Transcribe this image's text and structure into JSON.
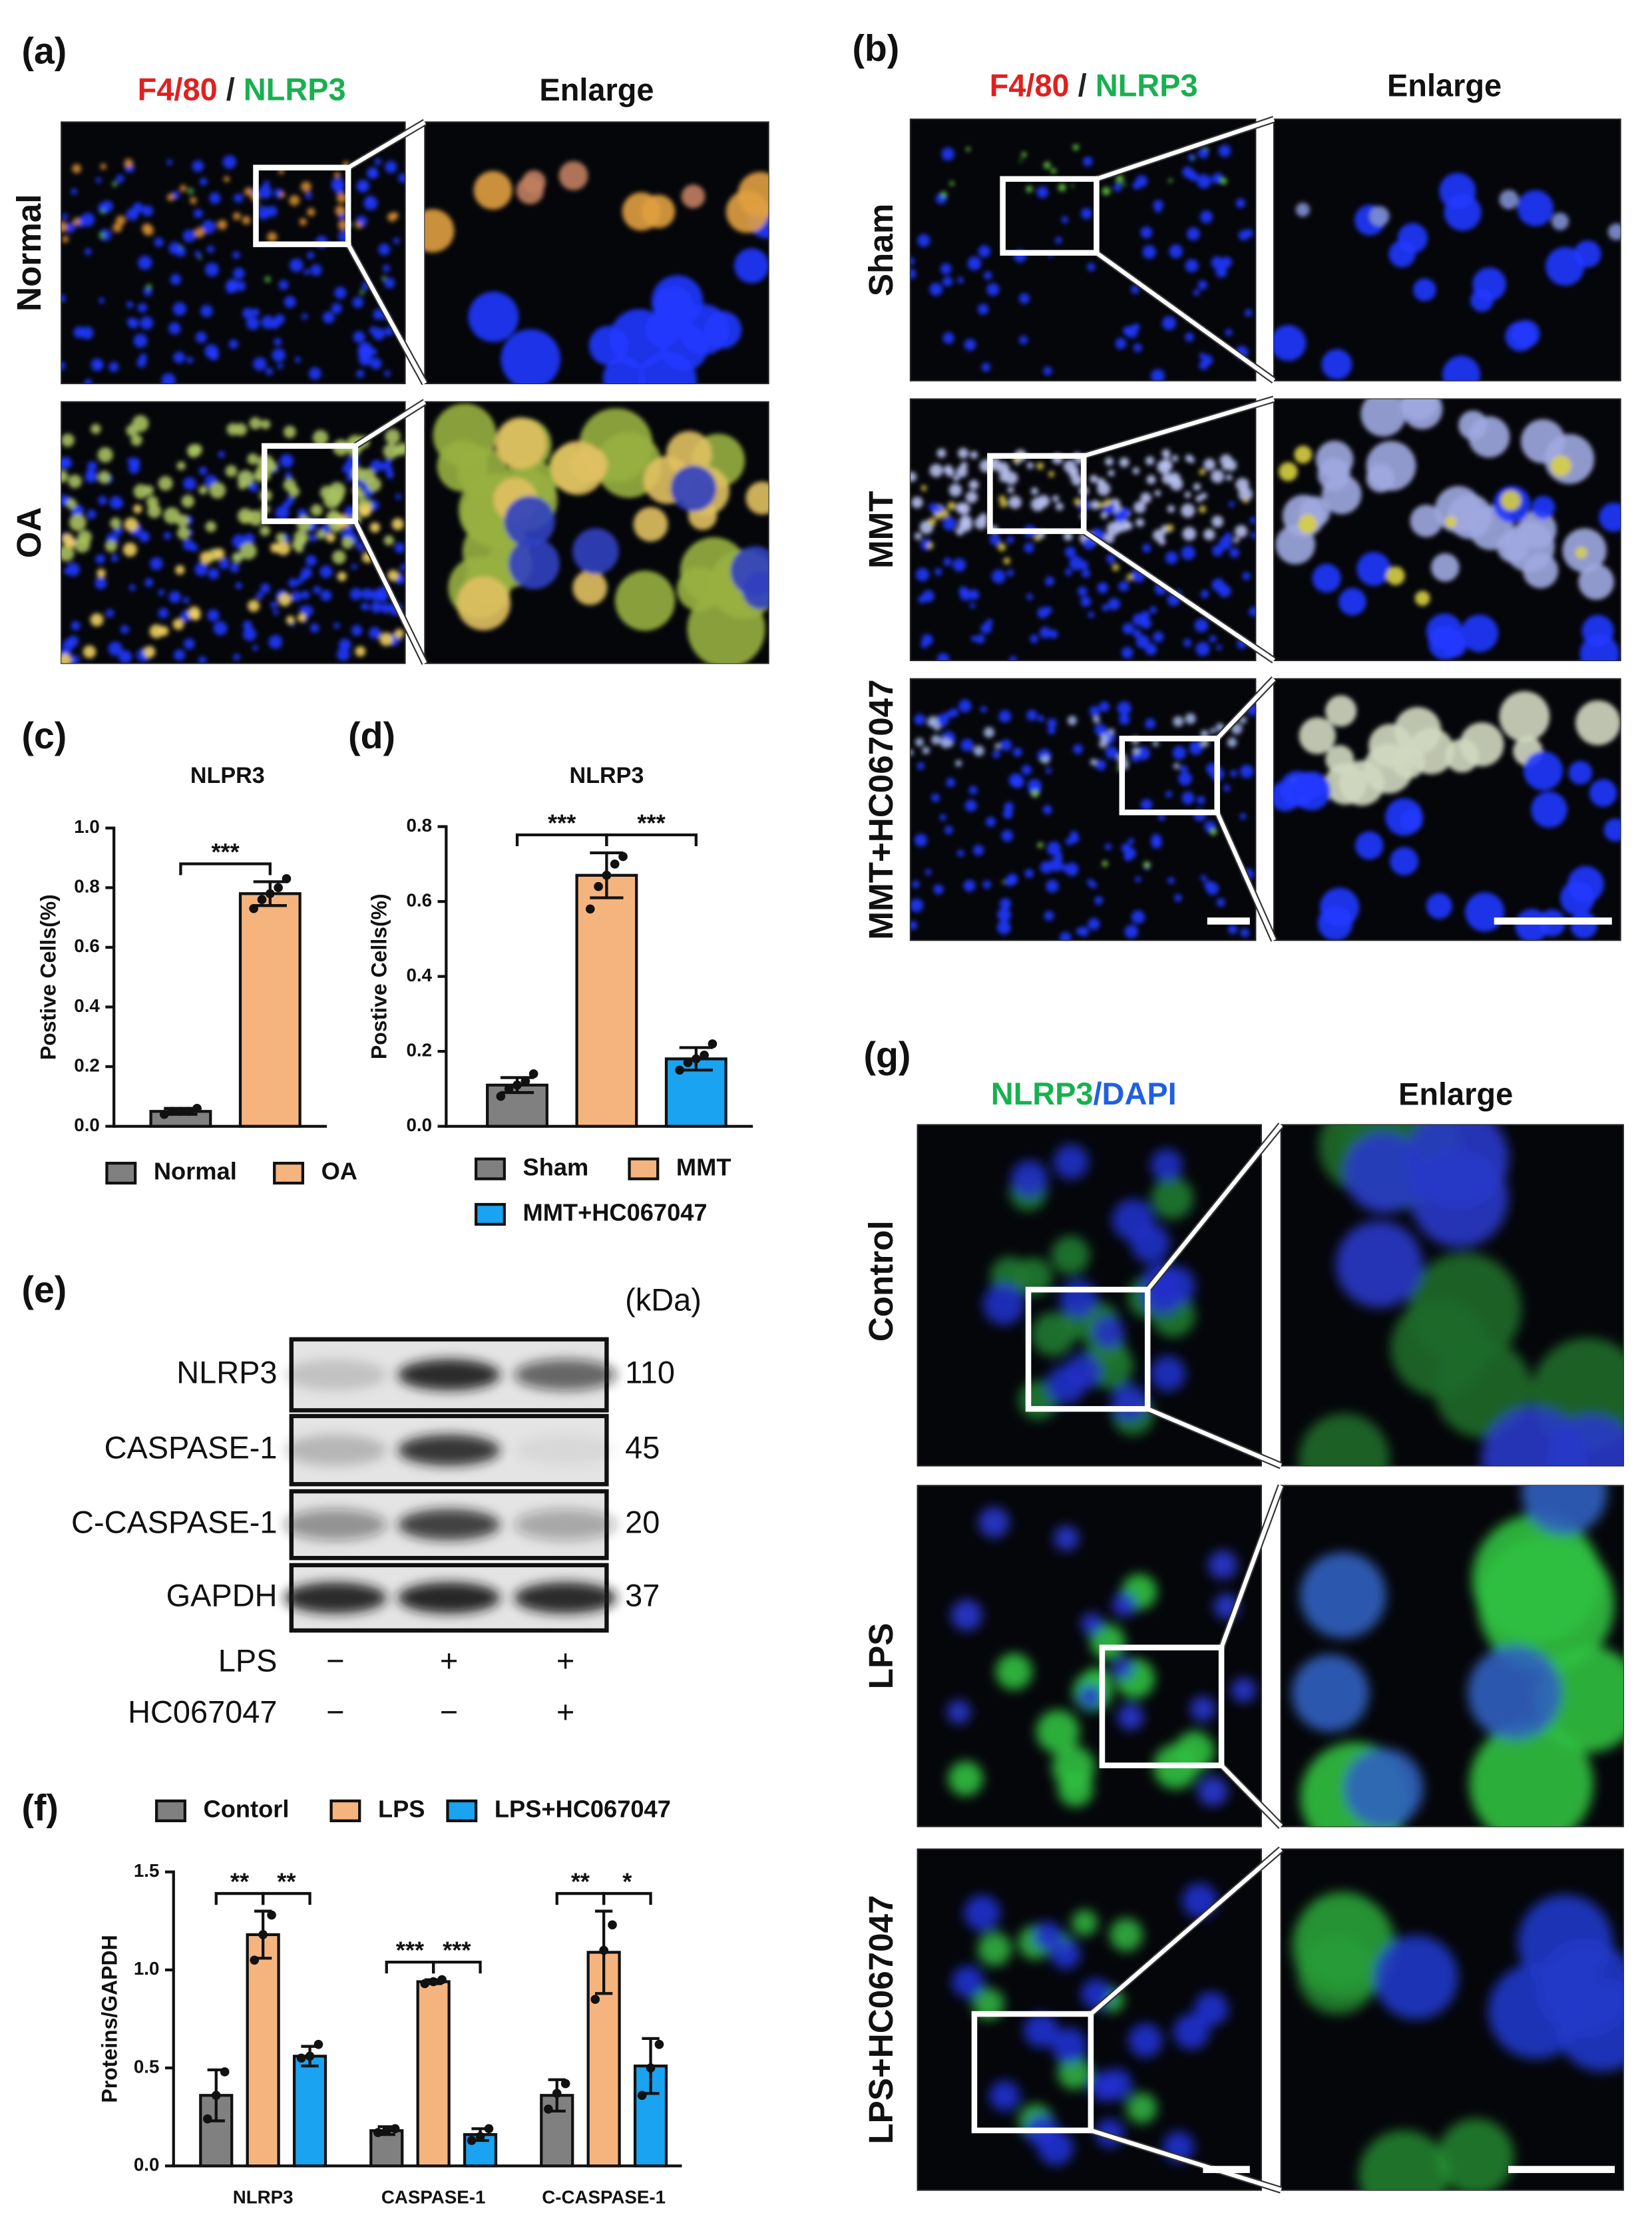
{
  "panel_a": {
    "label": "(a)",
    "header_red": "F4/80",
    "header_sep": " / ",
    "header_green": "NLRP3",
    "enlarge": "Enlarge",
    "rows": [
      "Normal",
      "OA"
    ]
  },
  "panel_b": {
    "label": "(b)",
    "header_red": "F4/80",
    "header_sep": " / ",
    "header_green": "NLRP3",
    "enlarge": "Enlarge",
    "rows": [
      "Sham",
      "MMT",
      "MMT+HC067047"
    ]
  },
  "panel_e": {
    "label": "(e)",
    "unit": "(kDa)",
    "proteins": [
      "NLRP3",
      "CASPASE-1",
      "C-CASPASE-1",
      "GAPDH"
    ],
    "kda": [
      110,
      45,
      20,
      37
    ],
    "treatments": [
      {
        "name": "LPS",
        "signs": [
          "−",
          "+",
          "+"
        ]
      },
      {
        "name": "HC067047",
        "signs": [
          "−",
          "−",
          "+"
        ]
      }
    ]
  },
  "panel_g": {
    "label": "(g)",
    "header_green": "NLRP3",
    "header_blue": "/DAPI",
    "enlarge": "Enlarge",
    "rows": [
      "Control",
      "LPS",
      "LPS+HC067047"
    ]
  },
  "chart_data": [
    {
      "type": "bar",
      "label": "(c)",
      "title": "NLPR3",
      "ylabel": "Postive Cells(%)",
      "categories": [
        "Normal",
        "OA"
      ],
      "colors": [
        "#808080",
        "#f5b47e"
      ],
      "values": [
        0.05,
        0.78
      ],
      "errors": [
        0.01,
        0.04
      ],
      "points": [
        [
          0.04,
          0.05,
          0.05,
          0.05,
          0.06
        ],
        [
          0.73,
          0.76,
          0.78,
          0.8,
          0.83
        ]
      ],
      "ylim": [
        0,
        1
      ],
      "yticks": [
        {
          "value": 0,
          "label": "0.0"
        },
        0.2,
        0.4,
        0.6,
        0.8,
        {
          "value": 1,
          "label": "1.0"
        }
      ],
      "comparisons": [
        {
          "groups": [
            "Normal",
            "OA"
          ],
          "label": "***"
        }
      ],
      "legend": "bottom"
    },
    {
      "type": "bar",
      "label": "(d)",
      "title": "NLRP3",
      "ylabel": "Postive Cells(%)",
      "categories": [
        "Sham",
        "MMT",
        "MMT+HC067047"
      ],
      "colors": [
        "#808080",
        "#f5b47e",
        "#1aa3f0"
      ],
      "values": [
        0.11,
        0.67,
        0.18
      ],
      "errors": [
        0.02,
        0.06,
        0.03
      ],
      "points": [
        [
          0.08,
          0.1,
          0.11,
          0.12,
          0.14
        ],
        [
          0.58,
          0.64,
          0.67,
          0.7,
          0.72
        ],
        [
          0.15,
          0.17,
          0.18,
          0.19,
          0.22
        ]
      ],
      "ylim": [
        0,
        0.8
      ],
      "yticks": [
        {
          "value": 0,
          "label": "0.0"
        },
        0.2,
        0.4,
        0.6,
        0.8
      ],
      "comparisons": [
        {
          "groups": [
            "Sham",
            "MMT"
          ],
          "label": "***"
        },
        {
          "groups": [
            "MMT",
            "MMT+HC067047"
          ],
          "label": "***"
        }
      ],
      "legend": "bottom"
    },
    {
      "type": "bar",
      "label": "(f)",
      "ylabel": "Proteins/GAPDH",
      "categories": [
        "NLRP3",
        "CASPASE-1",
        "C-CASPASE-1"
      ],
      "series": [
        {
          "name": "Contorl",
          "color": "#808080",
          "values": [
            0.36,
            0.18,
            0.36
          ],
          "errors": [
            0.13,
            0.02,
            0.08
          ],
          "points": [
            [
              0.24,
              0.36,
              0.48
            ],
            [
              0.17,
              0.18,
              0.19
            ],
            [
              0.29,
              0.37,
              0.42
            ]
          ]
        },
        {
          "name": "LPS",
          "color": "#f5b47e",
          "values": [
            1.18,
            0.94,
            1.09
          ],
          "errors": [
            0.12,
            0.01,
            0.21
          ],
          "points": [
            [
              1.05,
              1.18,
              1.28
            ],
            [
              0.93,
              0.94,
              0.95
            ],
            [
              0.85,
              1.1,
              1.23
            ]
          ]
        },
        {
          "name": "LPS+HC067047",
          "color": "#1aa3f0",
          "values": [
            0.56,
            0.16,
            0.51
          ],
          "errors": [
            0.05,
            0.03,
            0.14
          ],
          "points": [
            [
              0.55,
              0.56,
              0.62
            ],
            [
              0.13,
              0.15,
              0.19
            ],
            [
              0.36,
              0.5,
              0.62
            ]
          ]
        }
      ],
      "ylim": [
        0,
        1.5
      ],
      "yticks": [
        {
          "value": 0,
          "label": "0.0"
        },
        0.5,
        {
          "value": 1,
          "label": "1.0"
        },
        1.5
      ],
      "comparisons": [
        {
          "category": "NLRP3",
          "groups": [
            "Contorl",
            "LPS"
          ],
          "label": "**"
        },
        {
          "category": "NLRP3",
          "groups": [
            "LPS",
            "LPS+HC067047"
          ],
          "label": "**"
        },
        {
          "category": "CASPASE-1",
          "groups": [
            "Contorl",
            "LPS"
          ],
          "label": "***"
        },
        {
          "category": "CASPASE-1",
          "groups": [
            "LPS",
            "LPS+HC067047"
          ],
          "label": "***"
        },
        {
          "category": "C-CASPASE-1",
          "groups": [
            "Contorl",
            "LPS"
          ],
          "label": "**"
        },
        {
          "category": "C-CASPASE-1",
          "groups": [
            "LPS",
            "LPS+HC067047"
          ],
          "label": "*"
        }
      ],
      "legend": "top"
    }
  ]
}
